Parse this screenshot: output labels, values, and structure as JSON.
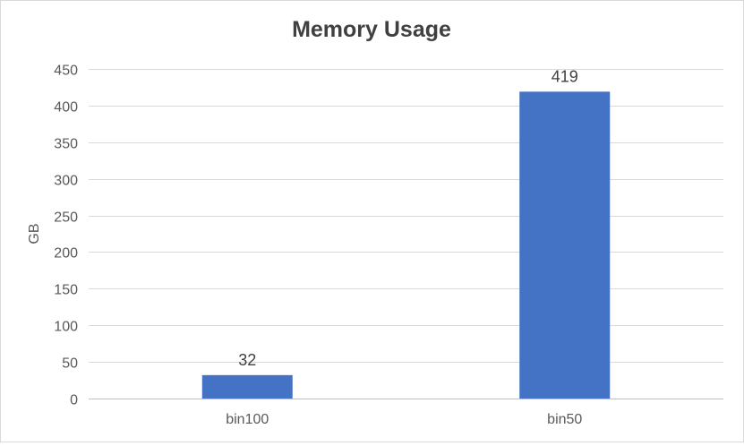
{
  "chart_data": {
    "type": "bar",
    "title": "Memory Usage",
    "xlabel": "",
    "ylabel": "GB",
    "categories": [
      "bin100",
      "bin50"
    ],
    "values": [
      32,
      419
    ],
    "data_labels": [
      "32",
      "419"
    ],
    "ylim": [
      0,
      450
    ],
    "yticks": [
      0,
      50,
      100,
      150,
      200,
      250,
      300,
      350,
      400,
      450
    ],
    "ytick_labels": [
      "0",
      "50",
      "100",
      "150",
      "200",
      "250",
      "300",
      "350",
      "400",
      "450"
    ],
    "grid": true,
    "legend": "none",
    "bar_color": "#4472c4"
  }
}
